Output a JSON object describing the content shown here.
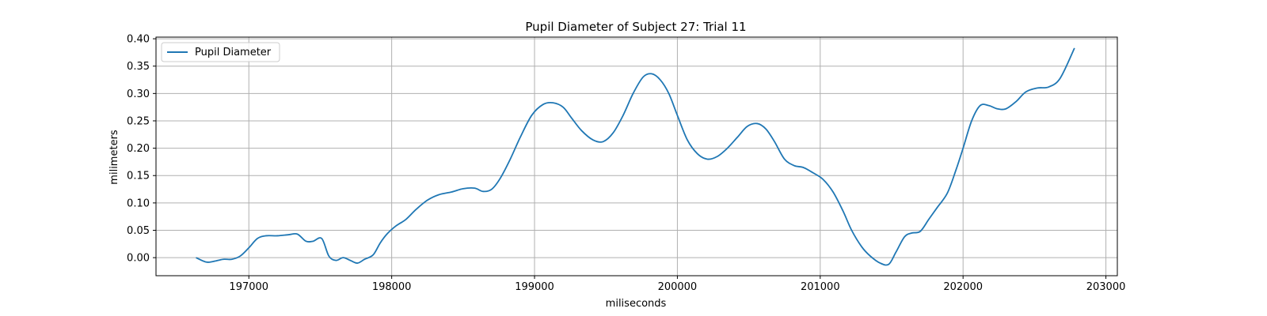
{
  "chart_data": {
    "type": "line",
    "title": "Pupil Diameter of Subject 27: Trial 11",
    "xlabel": "miliseconds",
    "ylabel": "milimeters",
    "xlim": [
      196350,
      203080
    ],
    "ylim": [
      -0.033,
      0.403
    ],
    "grid": true,
    "legend_position": "top-left",
    "x_ticks": [
      197000,
      198000,
      199000,
      200000,
      201000,
      202000,
      203000
    ],
    "y_ticks": [
      0.0,
      0.05,
      0.1,
      0.15,
      0.2,
      0.25,
      0.3,
      0.35,
      0.4
    ],
    "x_tick_labels": [
      "197000",
      "198000",
      "199000",
      "200000",
      "201000",
      "202000",
      "203000"
    ],
    "y_tick_labels": [
      "0.00",
      "0.05",
      "0.10",
      "0.15",
      "0.20",
      "0.25",
      "0.30",
      "0.35",
      "0.40"
    ],
    "series": [
      {
        "name": "Pupil Diameter",
        "color": "#1f77b4",
        "x": [
          196630,
          196700,
          196750,
          196820,
          196880,
          196940,
          197000,
          197060,
          197120,
          197200,
          197280,
          197340,
          197400,
          197450,
          197510,
          197560,
          197610,
          197660,
          197710,
          197760,
          197810,
          197870,
          197920,
          197970,
          198030,
          198100,
          198170,
          198250,
          198330,
          198420,
          198500,
          198580,
          198640,
          198700,
          198760,
          198830,
          198900,
          198980,
          199060,
          199130,
          199200,
          199260,
          199330,
          199410,
          199480,
          199550,
          199620,
          199690,
          199760,
          199820,
          199880,
          199940,
          200000,
          200070,
          200140,
          200210,
          200280,
          200350,
          200420,
          200490,
          200560,
          200620,
          200680,
          200750,
          200820,
          200880,
          200950,
          201020,
          201090,
          201160,
          201220,
          201290,
          201350,
          201420,
          201480,
          201530,
          201590,
          201640,
          201700,
          201760,
          201820,
          201890,
          201950,
          202000,
          202060,
          202120,
          202180,
          202240,
          202300,
          202370,
          202440,
          202520,
          202600,
          202680,
          202780
        ],
        "y": [
          0.0,
          -0.008,
          -0.007,
          -0.003,
          -0.003,
          0.003,
          0.018,
          0.035,
          0.04,
          0.04,
          0.042,
          0.043,
          0.03,
          0.03,
          0.035,
          0.003,
          -0.005,
          0.0,
          -0.005,
          -0.01,
          -0.003,
          0.005,
          0.027,
          0.044,
          0.058,
          0.07,
          0.088,
          0.105,
          0.115,
          0.12,
          0.126,
          0.127,
          0.121,
          0.125,
          0.145,
          0.18,
          0.22,
          0.26,
          0.28,
          0.283,
          0.275,
          0.255,
          0.232,
          0.215,
          0.212,
          0.228,
          0.26,
          0.3,
          0.33,
          0.336,
          0.325,
          0.3,
          0.26,
          0.215,
          0.19,
          0.18,
          0.185,
          0.2,
          0.22,
          0.24,
          0.245,
          0.235,
          0.212,
          0.18,
          0.168,
          0.165,
          0.155,
          0.143,
          0.12,
          0.085,
          0.05,
          0.02,
          0.003,
          -0.01,
          -0.012,
          0.01,
          0.038,
          0.045,
          0.048,
          0.07,
          0.092,
          0.118,
          0.16,
          0.2,
          0.25,
          0.278,
          0.278,
          0.272,
          0.272,
          0.285,
          0.303,
          0.31,
          0.312,
          0.328,
          0.383
        ]
      }
    ]
  }
}
